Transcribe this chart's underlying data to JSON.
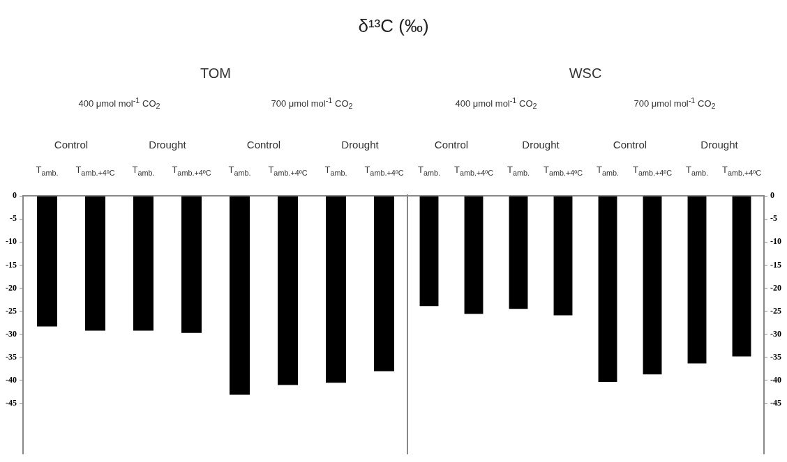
{
  "chart_data": [
    {
      "type": "bar",
      "title": "δ¹³C (‰)",
      "subtitle": "TOM",
      "categories": [
        "T$_{amb.}$",
        "T$_{amb.+4ºC}$",
        "T$_{amb.}$",
        "T$_{amb.+4ºC}$",
        "T$_{amb.}$",
        "T$_{amb.+4ºC}$",
        "T$_{amb.}$",
        "T$_{amb.+4ºC}$"
      ],
      "values": [
        -28.3,
        -29.2,
        -29.2,
        -29.7,
        -43.1,
        -41.0,
        -40.5,
        -38.0
      ],
      "color": "#000000",
      "ylim": [
        -56,
        0
      ],
      "yticks": [
        0,
        -5,
        -10,
        -15,
        -20,
        -25,
        -30,
        -35,
        -40,
        -45
      ],
      "annotations": [
        "400 μmol mol$^{-1}$ CO$_{2}$",
        "700 μmol mol$^{-1}$ CO$_{2}$",
        "Control",
        "Drought",
        "Control",
        "Drought"
      ]
    },
    {
      "type": "bar",
      "subtitle": "WSC",
      "categories": [
        "T$_{amb.}$",
        "T$_{amb.+4ºC}$",
        "T$_{amb.}$",
        "T$_{amb.+4ºC}$",
        "T$_{amb.}$",
        "T$_{amb.+4ºC}$",
        "T$_{amb.}$",
        "T$_{amb.+4ºC}$"
      ],
      "values": [
        -23.9,
        -25.6,
        -24.5,
        -25.9,
        -40.3,
        -38.7,
        -36.3,
        -34.8
      ],
      "color": "#000000",
      "ylim": [
        -56,
        0
      ],
      "yticks": [
        0,
        -5,
        -10,
        -15,
        -20,
        -25,
        -30,
        -35,
        -40,
        -45
      ],
      "annotations": [
        "400 μmol mol$^{-1}$ CO$_{2}$",
        "700 μmol mol$^{-1}$ CO$_{2}$",
        "Control",
        "Drought",
        "Control",
        "Drought"
      ]
    }
  ]
}
